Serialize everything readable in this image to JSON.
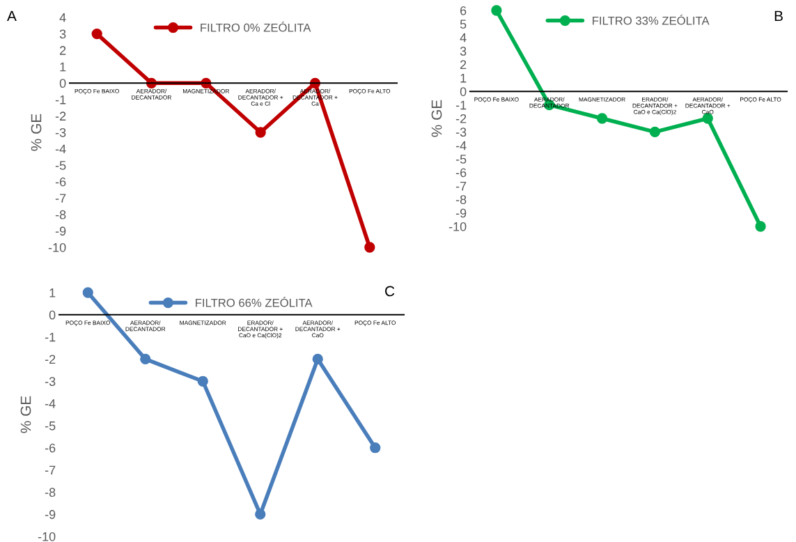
{
  "chart_data": [
    {
      "type": "line",
      "annotations": [
        "A"
      ],
      "ylabel": "% GE",
      "categories": [
        "POÇO Fe BAIXO",
        "AERADOR/\nDECANTADOR",
        "MAGNETIZADOR",
        "AERADOR/\nDECANTADOR +\nCa e Cl",
        "AERADOR/\nDECANTADOR +\nCa",
        "POÇO Fe ALTO"
      ],
      "series": [
        {
          "name": "FILTRO 0% ZEÓLITA",
          "color": "#c00000",
          "values": [
            3,
            0,
            0,
            -3,
            0,
            -10
          ]
        }
      ],
      "ylim": [
        -10,
        4
      ],
      "yticks": [
        -10,
        -9,
        -8,
        -7,
        -6,
        -5,
        -4,
        -3,
        -2,
        -1,
        0,
        1,
        2,
        3,
        4
      ],
      "legend": "top",
      "marker": "circle",
      "grid": false
    },
    {
      "type": "line",
      "annotations": [
        "B"
      ],
      "ylabel": "% GE",
      "categories": [
        "POÇO Fe BAIXO",
        "AERADOR/\nDECANTADOR",
        "MAGNETIZADOR",
        "ERADOR/\nDECANTADOR +\nCaO e Ca(ClO)2",
        "AERADOR/\nDECANTADOR +\nCaO",
        "POÇO Fe ALTO"
      ],
      "series": [
        {
          "name": "FILTRO 33% ZEÓLITA",
          "color": "#00b050",
          "values": [
            6,
            -1,
            -2,
            -3,
            -2,
            -10
          ]
        }
      ],
      "ylim": [
        -10,
        6
      ],
      "yticks": [
        -10,
        -9,
        -8,
        -7,
        -6,
        -5,
        -4,
        -3,
        -2,
        -1,
        0,
        1,
        2,
        3,
        4,
        5,
        6
      ],
      "legend": "top",
      "marker": "circle",
      "grid": false
    },
    {
      "type": "line",
      "annotations": [
        "C"
      ],
      "ylabel": "% GE",
      "categories": [
        "POÇO Fe BAIXO",
        "AERADOR/\nDECANTADOR",
        "MAGNETIZADOR",
        "ERADOR/\nDECANTADOR +\nCaO e Ca(ClO)2",
        "AERADOR/\nDECANTADOR +\nCaO",
        "POÇO Fe ALTO"
      ],
      "series": [
        {
          "name": "FILTRO 66% ZEÓLITA",
          "color": "#4a7ebb",
          "values": [
            1,
            -2,
            -3,
            -9,
            -2,
            -6
          ]
        }
      ],
      "ylim": [
        -10,
        1
      ],
      "yticks": [
        -10,
        -9,
        -8,
        -7,
        -6,
        -5,
        -4,
        -3,
        -2,
        -1,
        0,
        1
      ],
      "legend": "top",
      "marker": "circle",
      "grid": false
    }
  ]
}
